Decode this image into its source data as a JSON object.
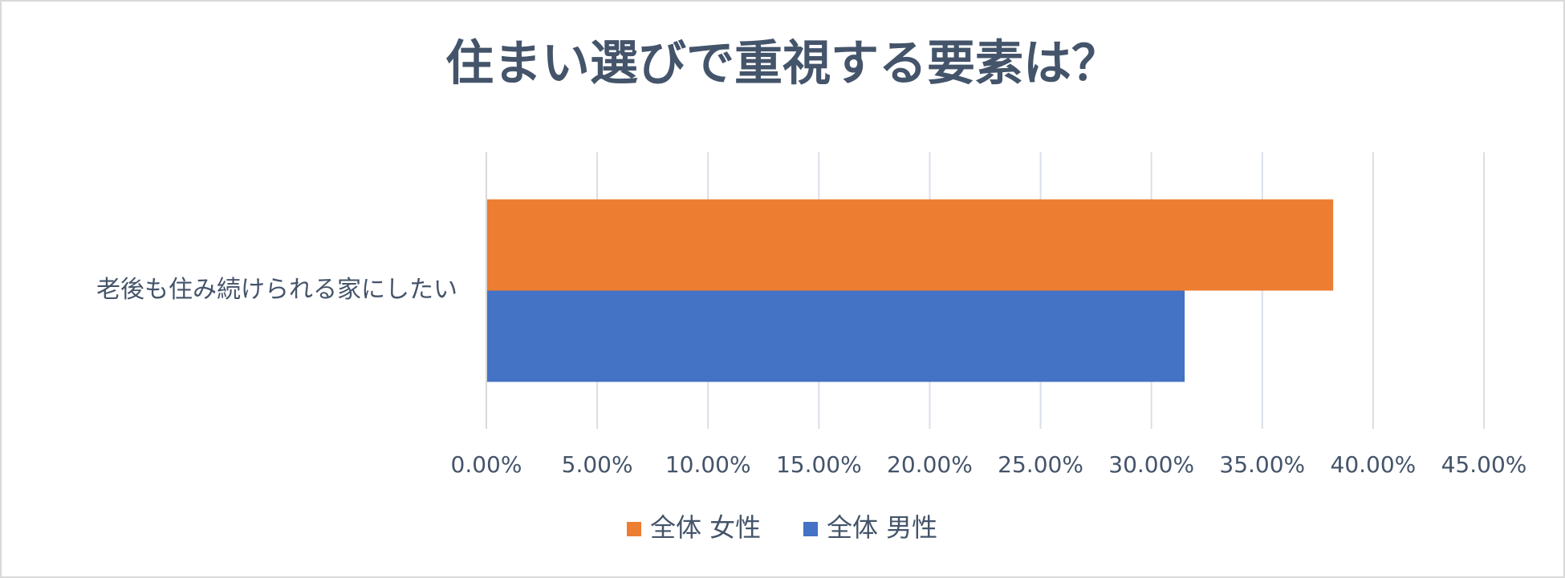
{
  "chart_data": {
    "type": "bar",
    "orientation": "horizontal",
    "title": "住まい選びで重視する要素は？",
    "categories": [
      "老後も住み続けられる家にしたい"
    ],
    "series": [
      {
        "name": "全体 女性",
        "color": "#ed7d31",
        "values": [
          38.2
        ]
      },
      {
        "name": "全体 男性",
        "color": "#4472c4",
        "values": [
          31.5
        ]
      }
    ],
    "xlim": [
      0,
      45
    ],
    "xticks": [
      {
        "value": 0,
        "label": "0.00%"
      },
      {
        "value": 5,
        "label": "5.00%"
      },
      {
        "value": 10,
        "label": "10.00%"
      },
      {
        "value": 15,
        "label": "15.00%"
      },
      {
        "value": 20,
        "label": "20.00%"
      },
      {
        "value": 25,
        "label": "25.00%"
      },
      {
        "value": 30,
        "label": "30.00%"
      },
      {
        "value": 35,
        "label": "35.00%"
      },
      {
        "value": 40,
        "label": "40.00%"
      },
      {
        "value": 45,
        "label": "45.00%"
      }
    ],
    "grid": true,
    "legend": "bottom"
  }
}
